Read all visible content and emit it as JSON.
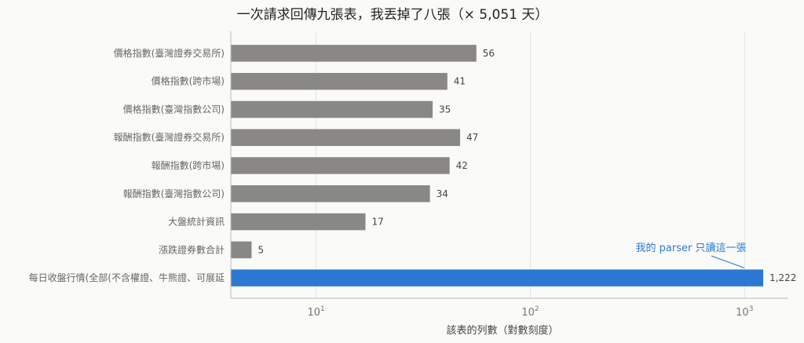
{
  "chart_data": {
    "type": "bar",
    "orientation": "horizontal",
    "title": "一次請求回傳九張表，我丟掉了八張（× 5,051 天）",
    "xlabel": "該表的列數（對數刻度）",
    "ylabel": "",
    "x_scale": "log",
    "xlim": [
      4,
      1600
    ],
    "x_ticks": [
      {
        "value": 10,
        "base": "10",
        "exp": "1"
      },
      {
        "value": 100,
        "base": "10",
        "exp": "2"
      },
      {
        "value": 1000,
        "base": "10",
        "exp": "3"
      }
    ],
    "grid": "vertical",
    "categories": [
      "價格指數(臺灣證券交易所)",
      "價格指數(跨市場)",
      "價格指數(臺灣指數公司)",
      "報酬指數(臺灣證券交易所)",
      "報酬指數(跨市場)",
      "報酬指數(臺灣指數公司)",
      "大盤統計資訊",
      "漲跌證券數合計",
      "每日收盤行情(全部(不含權證、牛熊證、可展延"
    ],
    "values": [
      56,
      41,
      35,
      47,
      42,
      34,
      17,
      5,
      1222
    ],
    "value_labels": [
      "56",
      "41",
      "35",
      "47",
      "42",
      "34",
      "17",
      "5",
      "1,222"
    ],
    "highlight_index": 8,
    "colors": {
      "default": "#8a8884",
      "highlight": "#2b78d4"
    },
    "annotation": {
      "text": "我的 parser 只讀這一張",
      "target_index": 8,
      "color": "#2b78d4"
    }
  }
}
